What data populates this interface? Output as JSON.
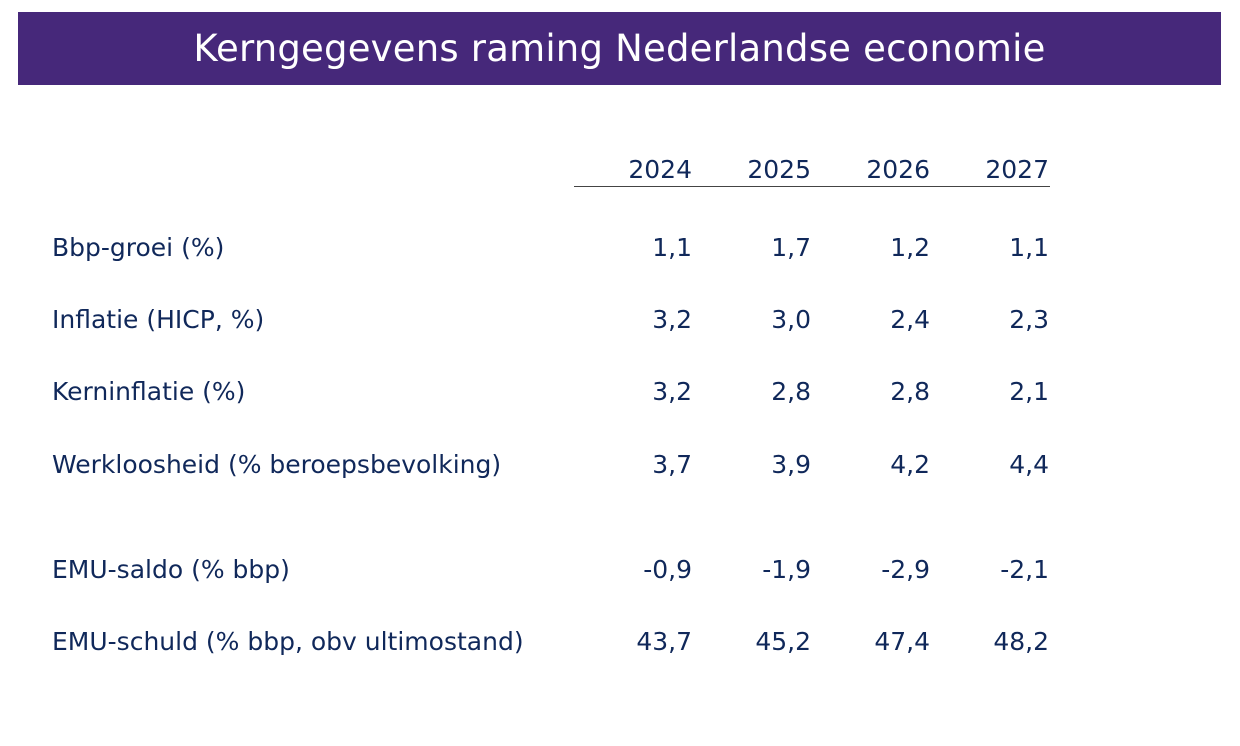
{
  "title": "Kerngegevens raming Nederlandse economie",
  "colors": {
    "title_bar": "#46287a",
    "title_text": "#ffffff",
    "body_text": "#10285a",
    "rule": "#444444"
  },
  "table": {
    "columns": [
      "2024",
      "2025",
      "2026",
      "2027"
    ],
    "rows": [
      {
        "label": "Bbp-groei (%)",
        "values": [
          "1,1",
          "1,7",
          "1,2",
          "1,1"
        ]
      },
      {
        "label": "Inflatie (HICP, %)",
        "values": [
          "3,2",
          "3,0",
          "2,4",
          "2,3"
        ]
      },
      {
        "label": "Kerninflatie (%)",
        "values": [
          "3,2",
          "2,8",
          "2,8",
          "2,1"
        ]
      },
      {
        "label": "Werkloosheid (% beroepsbevolking)",
        "values": [
          "3,7",
          "3,9",
          "4,2",
          "4,4"
        ]
      },
      {
        "label": "EMU-saldo (% bbp)",
        "values": [
          "-0,9",
          "-1,9",
          "-2,9",
          "-2,1"
        ]
      },
      {
        "label": "EMU-schuld (% bbp, obv ultimostand)",
        "values": [
          "43,7",
          "45,2",
          "47,4",
          "48,2"
        ]
      }
    ]
  }
}
